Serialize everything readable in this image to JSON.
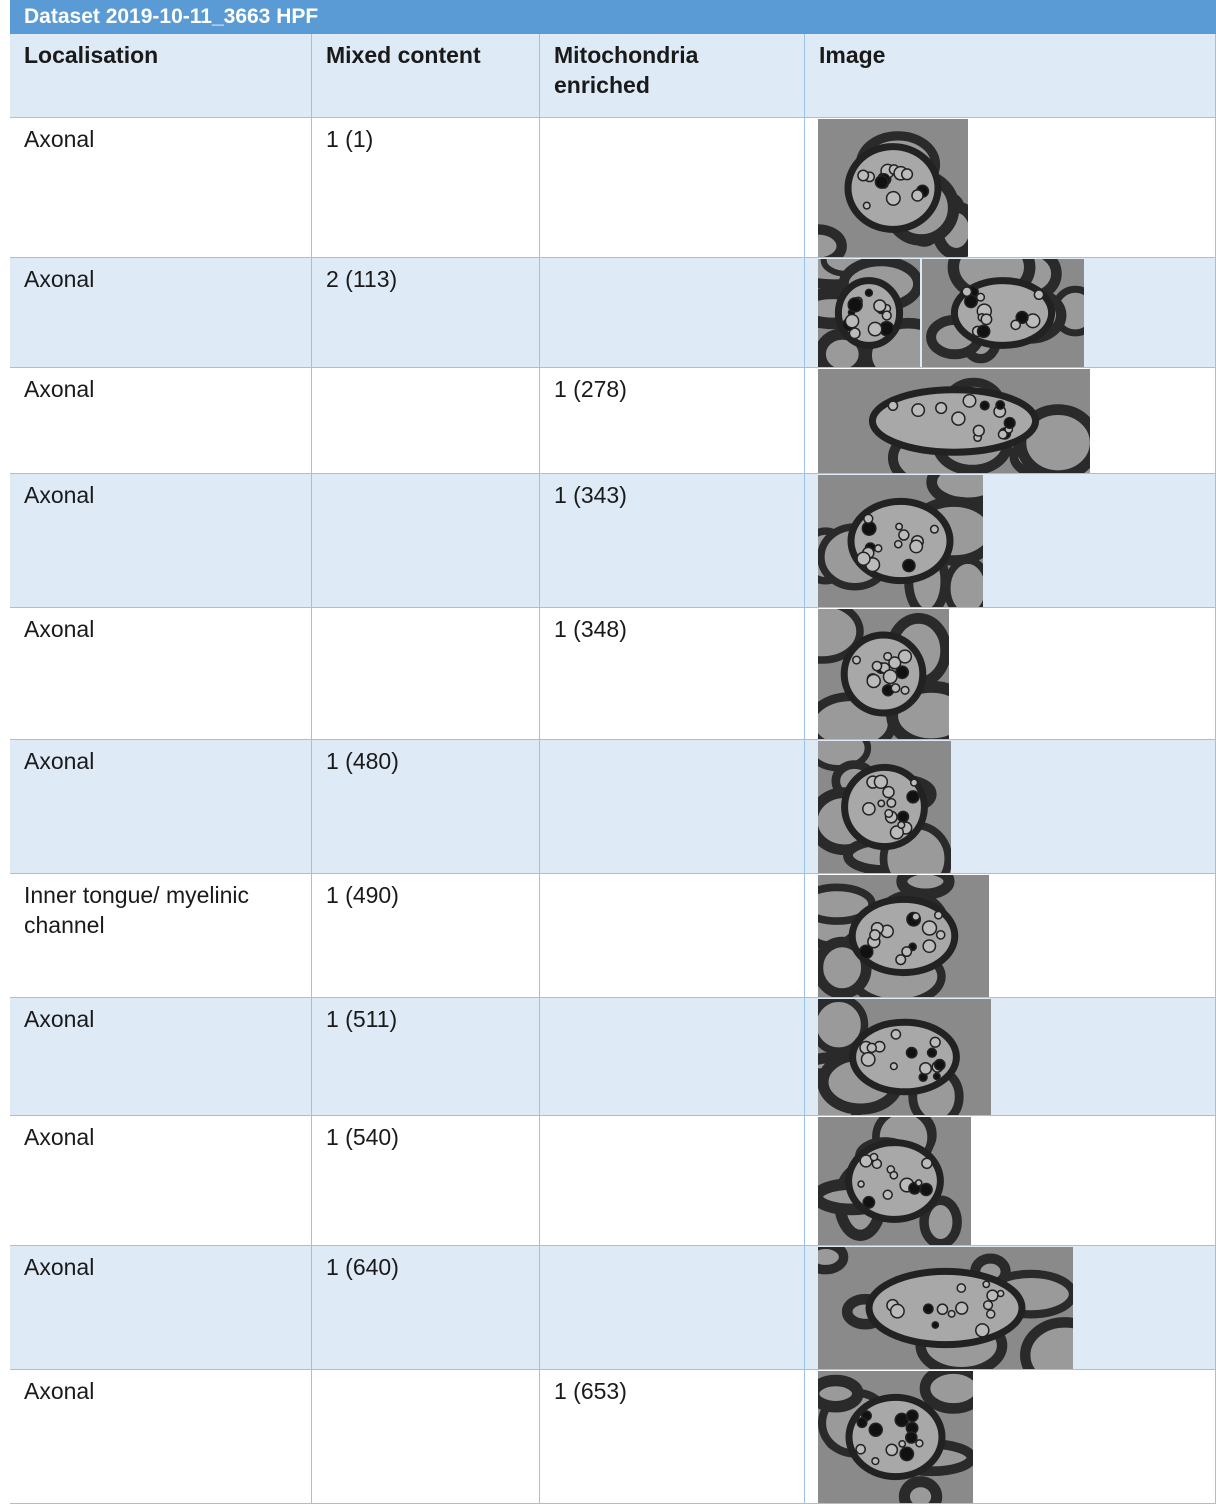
{
  "header": {
    "title": "Dataset 2019-10-11_3663 HPF"
  },
  "table": {
    "columns": [
      "Localisation",
      "Mixed content",
      "Mitochondria enriched",
      "Image"
    ],
    "rows": [
      [
        "Axonal",
        "1 (1)",
        null
      ],
      [
        "Axonal",
        "2 (113)",
        null
      ],
      [
        "Axonal",
        null,
        "1 (278)"
      ],
      [
        "Axonal",
        null,
        "1 (343)"
      ],
      [
        "Axonal",
        null,
        "1 (348)"
      ],
      [
        "Axonal",
        "1 (480)",
        null
      ],
      [
        "Inner tongue/ myelinic channel",
        "1 (490)",
        null
      ],
      [
        "Axonal",
        "1 (511)",
        null
      ],
      [
        "Axonal",
        "1 (540)",
        null
      ],
      [
        "Axonal",
        "1 (640)",
        null
      ],
      [
        "Axonal",
        null,
        "1 (653)"
      ]
    ]
  }
}
